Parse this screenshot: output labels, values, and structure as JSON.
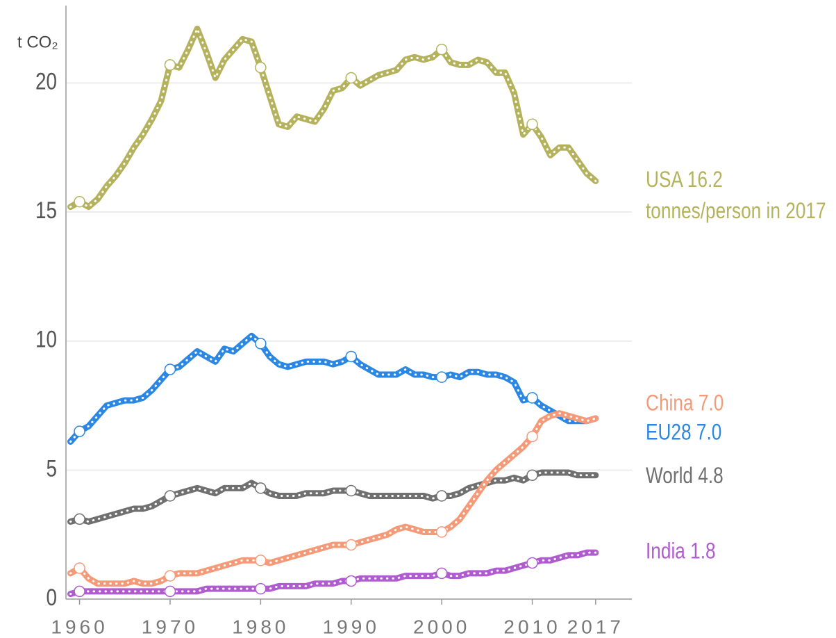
{
  "chart_data": {
    "type": "line",
    "y_label": "t CO₂",
    "annotation": "tonnes/person in 2017",
    "x": [
      1959,
      1960,
      1961,
      1962,
      1963,
      1964,
      1965,
      1966,
      1967,
      1968,
      1969,
      1970,
      1971,
      1972,
      1973,
      1974,
      1975,
      1976,
      1977,
      1978,
      1979,
      1980,
      1981,
      1982,
      1983,
      1984,
      1985,
      1986,
      1987,
      1988,
      1989,
      1990,
      1991,
      1992,
      1993,
      1994,
      1995,
      1996,
      1997,
      1998,
      1999,
      2000,
      2001,
      2002,
      2003,
      2004,
      2005,
      2006,
      2007,
      2008,
      2009,
      2010,
      2011,
      2012,
      2013,
      2014,
      2015,
      2016,
      2017
    ],
    "series": [
      {
        "name": "USA 16.2",
        "color": "#b5b25e",
        "values": [
          15.2,
          15.4,
          15.2,
          15.5,
          16.0,
          16.4,
          16.9,
          17.5,
          18.0,
          18.6,
          19.3,
          20.7,
          20.6,
          21.3,
          22.1,
          21.2,
          20.2,
          20.9,
          21.3,
          21.7,
          21.6,
          20.6,
          19.5,
          18.4,
          18.3,
          18.7,
          18.6,
          18.5,
          19.0,
          19.7,
          19.8,
          20.2,
          19.9,
          20.1,
          20.3,
          20.4,
          20.5,
          20.9,
          21.0,
          20.9,
          21.0,
          21.3,
          20.8,
          20.7,
          20.7,
          20.9,
          20.8,
          20.4,
          20.4,
          19.6,
          18.0,
          18.4,
          17.9,
          17.2,
          17.5,
          17.5,
          17.0,
          16.5,
          16.2
        ]
      },
      {
        "name": "EU28 7.0",
        "color": "#2a87e4",
        "values": [
          6.1,
          6.5,
          6.7,
          7.1,
          7.5,
          7.6,
          7.7,
          7.7,
          7.8,
          8.1,
          8.5,
          8.9,
          9.0,
          9.3,
          9.6,
          9.4,
          9.2,
          9.7,
          9.6,
          9.9,
          10.2,
          9.9,
          9.4,
          9.1,
          9.0,
          9.1,
          9.2,
          9.2,
          9.2,
          9.1,
          9.2,
          9.4,
          9.1,
          8.9,
          8.7,
          8.7,
          8.7,
          8.9,
          8.7,
          8.7,
          8.6,
          8.6,
          8.7,
          8.6,
          8.8,
          8.8,
          8.7,
          8.7,
          8.6,
          8.4,
          7.7,
          7.8,
          7.5,
          7.3,
          7.1,
          6.9,
          6.9,
          6.9,
          7.0
        ]
      },
      {
        "name": "World 4.8",
        "color": "#707070",
        "values": [
          3.0,
          3.1,
          3.0,
          3.1,
          3.2,
          3.3,
          3.4,
          3.5,
          3.5,
          3.6,
          3.8,
          4.0,
          4.1,
          4.2,
          4.3,
          4.2,
          4.1,
          4.3,
          4.3,
          4.3,
          4.5,
          4.3,
          4.1,
          4.0,
          4.0,
          4.0,
          4.1,
          4.1,
          4.1,
          4.2,
          4.2,
          4.2,
          4.1,
          4.0,
          4.0,
          4.0,
          4.0,
          4.0,
          4.0,
          4.0,
          3.9,
          4.0,
          4.0,
          4.1,
          4.3,
          4.4,
          4.5,
          4.6,
          4.6,
          4.7,
          4.6,
          4.8,
          4.9,
          4.9,
          4.9,
          4.9,
          4.8,
          4.8,
          4.8
        ]
      },
      {
        "name": "China 7.0",
        "color": "#f59a78",
        "values": [
          1.0,
          1.2,
          0.8,
          0.6,
          0.6,
          0.6,
          0.6,
          0.7,
          0.6,
          0.6,
          0.7,
          0.9,
          1.0,
          1.0,
          1.0,
          1.1,
          1.2,
          1.3,
          1.4,
          1.5,
          1.5,
          1.5,
          1.4,
          1.5,
          1.6,
          1.7,
          1.8,
          1.9,
          2.0,
          2.1,
          2.1,
          2.1,
          2.2,
          2.3,
          2.4,
          2.5,
          2.7,
          2.8,
          2.7,
          2.6,
          2.6,
          2.6,
          2.8,
          3.1,
          3.6,
          4.1,
          4.6,
          5.0,
          5.3,
          5.6,
          5.9,
          6.3,
          6.9,
          7.1,
          7.2,
          7.1,
          7.0,
          6.9,
          7.0
        ]
      },
      {
        "name": "India 1.8",
        "color": "#b05bd0",
        "values": [
          0.2,
          0.3,
          0.3,
          0.3,
          0.3,
          0.3,
          0.3,
          0.3,
          0.3,
          0.3,
          0.3,
          0.3,
          0.3,
          0.3,
          0.3,
          0.4,
          0.4,
          0.4,
          0.4,
          0.4,
          0.4,
          0.4,
          0.4,
          0.5,
          0.5,
          0.5,
          0.5,
          0.6,
          0.6,
          0.6,
          0.7,
          0.7,
          0.8,
          0.8,
          0.8,
          0.8,
          0.8,
          0.9,
          0.9,
          0.9,
          0.9,
          1.0,
          0.9,
          0.9,
          1.0,
          1.0,
          1.0,
          1.1,
          1.1,
          1.2,
          1.3,
          1.4,
          1.5,
          1.5,
          1.6,
          1.7,
          1.7,
          1.8,
          1.8
        ]
      }
    ],
    "xlim": [
      1958.5,
      2021
    ],
    "ylim": [
      0,
      23
    ],
    "xticks": [
      1960,
      1970,
      1980,
      1990,
      2000,
      2010,
      2017
    ],
    "yticks": [
      0,
      5,
      10,
      15,
      20
    ],
    "grid": true
  }
}
